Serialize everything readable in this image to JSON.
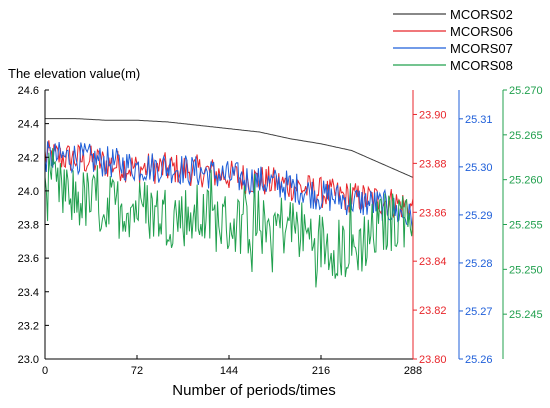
{
  "chart_data": {
    "type": "line",
    "ylabel": "The elevation value(m)",
    "xlabel": "Number of periods/times",
    "xlim": [
      0,
      288
    ],
    "xticks": [
      "0",
      "72",
      "144",
      "216",
      "288"
    ],
    "axes": [
      {
        "id": "left",
        "color": "#000000",
        "ylim": [
          23.0,
          24.6
        ],
        "ticks": [
          "23.0",
          "23.2",
          "23.4",
          "23.6",
          "23.8",
          "24.0",
          "24.2",
          "24.4",
          "24.6"
        ]
      },
      {
        "id": "mcors06",
        "color": "#e8262b",
        "ylim": [
          23.8,
          23.91
        ],
        "ticks": [
          "23.80",
          "23.82",
          "23.84",
          "23.86",
          "23.88",
          "23.90"
        ]
      },
      {
        "id": "mcors07",
        "color": "#1f5fd9",
        "ylim": [
          25.26,
          25.316
        ],
        "ticks": [
          "25.26",
          "25.27",
          "25.28",
          "25.29",
          "25.30",
          "25.31"
        ]
      },
      {
        "id": "mcors08",
        "color": "#21a04e",
        "ylim": [
          25.24,
          25.27
        ],
        "ticks": [
          "25.245",
          "25.250",
          "25.255",
          "25.260",
          "25.265",
          "25.270"
        ]
      }
    ],
    "series": [
      {
        "name": "MCORS02",
        "color": "#404040",
        "axis": "left",
        "x": [
          0,
          24,
          48,
          72,
          96,
          120,
          144,
          168,
          192,
          216,
          240,
          252,
          264,
          276,
          288
        ],
        "values": [
          24.43,
          24.43,
          24.42,
          24.42,
          24.41,
          24.39,
          24.37,
          24.35,
          24.31,
          24.28,
          24.24,
          24.2,
          24.16,
          24.12,
          24.08
        ]
      },
      {
        "name": "MCORS06",
        "color": "#e8262b",
        "axis": "mcors06",
        "x": [
          0,
          24,
          48,
          72,
          96,
          120,
          144,
          168,
          192,
          216,
          240,
          264,
          280,
          288
        ],
        "values": [
          23.883,
          23.882,
          23.88,
          23.878,
          23.878,
          23.877,
          23.875,
          23.873,
          23.871,
          23.868,
          23.866,
          23.865,
          23.863,
          23.862
        ]
      },
      {
        "name": "MCORS07",
        "color": "#1f5fd9",
        "axis": "mcors07",
        "x": [
          0,
          24,
          48,
          72,
          96,
          120,
          144,
          168,
          192,
          216,
          240,
          264,
          280,
          288
        ],
        "values": [
          25.302,
          25.302,
          25.301,
          25.3,
          25.3,
          25.299,
          25.298,
          25.297,
          25.296,
          25.294,
          25.293,
          25.292,
          25.29,
          25.289
        ]
      },
      {
        "name": "MCORS08",
        "color": "#21a04e",
        "axis": "mcors08",
        "x": [
          0,
          24,
          48,
          72,
          96,
          120,
          144,
          168,
          192,
          216,
          240,
          264,
          280,
          288
        ],
        "values": [
          25.259,
          25.258,
          25.257,
          25.257,
          25.256,
          25.256,
          25.255,
          25.255,
          25.255,
          25.253,
          25.252,
          25.255,
          25.256,
          25.256
        ]
      }
    ],
    "legend_position": "top-right",
    "grid": false
  }
}
